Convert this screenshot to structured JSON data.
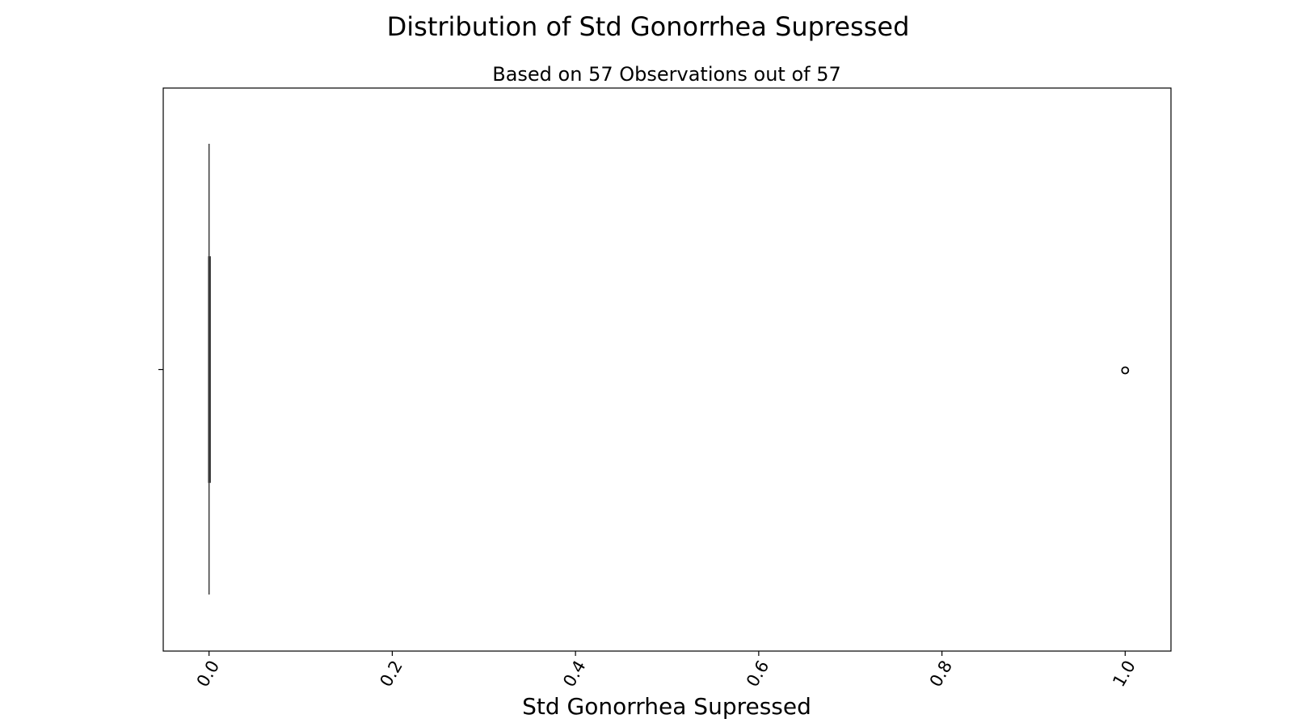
{
  "chart_data": {
    "type": "box",
    "title": "Distribution of Std Gonorrhea Supressed",
    "subtitle": "Based on 57 Observations out of 57",
    "xlabel": "Std Gonorrhea Supressed",
    "ylabel": "",
    "orientation": "horizontal",
    "xlim": [
      -0.05,
      1.05
    ],
    "x_ticks": [
      0.0,
      0.2,
      0.4,
      0.6,
      0.8,
      1.0
    ],
    "x_tick_labels": [
      "0.0",
      "0.2",
      "0.4",
      "0.6",
      "0.8",
      "1.0"
    ],
    "tick_rotation_deg": 60,
    "grid": false,
    "box": {
      "min": 0.0,
      "q1": 0.0,
      "median": 0.0,
      "q3": 0.0,
      "max": 0.0,
      "outliers": [
        1.0
      ]
    },
    "n_observations": 57,
    "n_total": 57,
    "colors": {
      "axes": "#000000",
      "box_line": "#3b3b3b",
      "background": "#ffffff"
    }
  }
}
